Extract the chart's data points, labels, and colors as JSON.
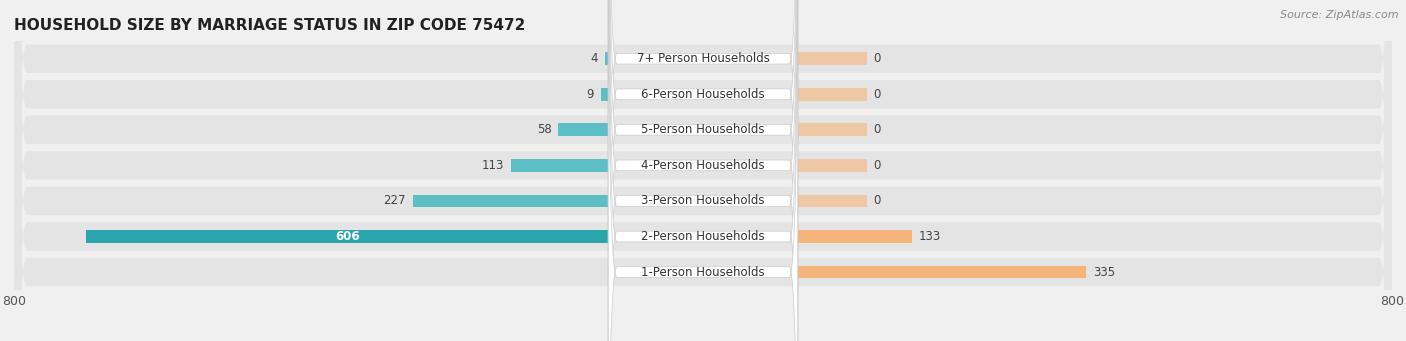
{
  "title": "HOUSEHOLD SIZE BY MARRIAGE STATUS IN ZIP CODE 75472",
  "source": "Source: ZipAtlas.com",
  "categories": [
    "7+ Person Households",
    "6-Person Households",
    "5-Person Households",
    "4-Person Households",
    "3-Person Households",
    "2-Person Households",
    "1-Person Households"
  ],
  "family_values": [
    4,
    9,
    58,
    113,
    227,
    606,
    0
  ],
  "nonfamily_values": [
    0,
    0,
    0,
    0,
    0,
    133,
    335
  ],
  "family_color": "#5bbfc5",
  "nonfamily_color": "#f5b47a",
  "family_color_large": "#2aa5ad",
  "axis_min": -800,
  "axis_max": 800,
  "bg_color": "#f0f0f0",
  "row_bg_light": "#e4e4e4",
  "row_bg_dark": "#d8d8d8",
  "label_bg": "#ffffff",
  "title_fontsize": 11,
  "source_fontsize": 8,
  "axis_label_fontsize": 9,
  "bar_label_fontsize": 8.5,
  "cat_label_fontsize": 8.5,
  "legend_fontsize": 9
}
